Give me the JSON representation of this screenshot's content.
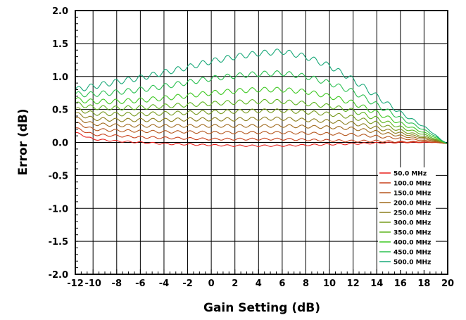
{
  "chart_data": {
    "type": "line",
    "xlabel": "Gain Setting (dB)",
    "ylabel": "Error (dB)",
    "xlim": [
      -11.5,
      20
    ],
    "ylim": [
      -2.0,
      2.0
    ],
    "x_ticks": [
      -12,
      -10,
      -8,
      -6,
      -4,
      -2,
      0,
      2,
      4,
      6,
      8,
      10,
      12,
      14,
      16,
      18,
      20
    ],
    "x_tick_labels": [
      "-12",
      "-10",
      "-8",
      "-6",
      "-4",
      "-2",
      "0",
      "2",
      "4",
      "6",
      "8",
      "10",
      "12",
      "14",
      "16",
      "18",
      "20"
    ],
    "y_ticks": [
      -2.0,
      -1.5,
      -1.0,
      -0.5,
      0.0,
      0.5,
      1.0,
      1.5,
      2.0
    ],
    "y_tick_labels": [
      "-2.0",
      "-1.5",
      "-1.0",
      "-0.5",
      "0.0",
      "0.5",
      "1.0",
      "1.5",
      "2.0"
    ],
    "grid": true,
    "legend_position": "bottom-right",
    "x": [
      -11.5,
      -10,
      -8,
      -6,
      -4,
      -2,
      0,
      2,
      4,
      6,
      8,
      10,
      12,
      14,
      16,
      18,
      19,
      19.5,
      20
    ],
    "series": [
      {
        "name": "50.0 MHz",
        "color": "#e8201c",
        "values": [
          0.15,
          0.05,
          0.02,
          0.0,
          -0.02,
          -0.03,
          -0.04,
          -0.05,
          -0.05,
          -0.05,
          -0.04,
          -0.03,
          -0.02,
          -0.01,
          0.0,
          0.0,
          0.0,
          -0.01,
          -0.02
        ]
      },
      {
        "name": "100.0 MHz",
        "color": "#c8401a",
        "values": [
          0.22,
          0.12,
          0.1,
          0.08,
          0.07,
          0.06,
          0.05,
          0.05,
          0.05,
          0.05,
          0.04,
          0.03,
          0.02,
          0.02,
          0.01,
          0.01,
          0.0,
          -0.01,
          -0.02
        ]
      },
      {
        "name": "150.0 MHz",
        "color": "#b5561c",
        "values": [
          0.3,
          0.2,
          0.18,
          0.17,
          0.16,
          0.16,
          0.15,
          0.15,
          0.15,
          0.15,
          0.14,
          0.13,
          0.12,
          0.09,
          0.06,
          0.03,
          0.01,
          -0.01,
          -0.02
        ]
      },
      {
        "name": "200.0 MHz",
        "color": "#a06a1c",
        "values": [
          0.37,
          0.28,
          0.26,
          0.25,
          0.25,
          0.25,
          0.25,
          0.25,
          0.25,
          0.25,
          0.24,
          0.23,
          0.21,
          0.16,
          0.1,
          0.05,
          0.02,
          0.0,
          -0.02
        ]
      },
      {
        "name": "250.0 MHz",
        "color": "#8c7e1c",
        "values": [
          0.44,
          0.36,
          0.34,
          0.34,
          0.34,
          0.35,
          0.35,
          0.35,
          0.36,
          0.36,
          0.34,
          0.32,
          0.29,
          0.22,
          0.14,
          0.07,
          0.03,
          0.0,
          -0.02
        ]
      },
      {
        "name": "300.0 MHz",
        "color": "#779a1e",
        "values": [
          0.51,
          0.44,
          0.43,
          0.43,
          0.44,
          0.45,
          0.46,
          0.47,
          0.48,
          0.48,
          0.46,
          0.43,
          0.38,
          0.29,
          0.18,
          0.09,
          0.04,
          0.01,
          -0.02
        ]
      },
      {
        "name": "350.0 MHz",
        "color": "#5cb41e",
        "values": [
          0.59,
          0.53,
          0.52,
          0.53,
          0.55,
          0.57,
          0.59,
          0.61,
          0.62,
          0.62,
          0.59,
          0.55,
          0.48,
          0.36,
          0.23,
          0.12,
          0.05,
          0.01,
          -0.02
        ]
      },
      {
        "name": "400.0 MHz",
        "color": "#3ec822",
        "values": [
          0.65,
          0.62,
          0.62,
          0.64,
          0.67,
          0.71,
          0.75,
          0.78,
          0.8,
          0.8,
          0.77,
          0.7,
          0.6,
          0.45,
          0.29,
          0.15,
          0.07,
          0.02,
          -0.02
        ]
      },
      {
        "name": "450.0 MHz",
        "color": "#2ac050",
        "values": [
          0.73,
          0.73,
          0.76,
          0.8,
          0.85,
          0.91,
          0.97,
          1.01,
          1.04,
          1.05,
          1.0,
          0.9,
          0.77,
          0.57,
          0.37,
          0.19,
          0.09,
          0.03,
          -0.02
        ]
      },
      {
        "name": "500.0 MHz",
        "color": "#18a878",
        "values": [
          0.8,
          0.85,
          0.92,
          0.98,
          1.06,
          1.14,
          1.23,
          1.3,
          1.35,
          1.38,
          1.3,
          1.16,
          0.95,
          0.7,
          0.45,
          0.24,
          0.11,
          0.03,
          -0.02
        ]
      }
    ]
  }
}
